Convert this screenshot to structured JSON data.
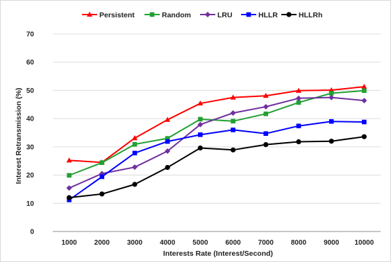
{
  "chart_data": {
    "type": "line",
    "title": "",
    "xlabel": "Interests Rate (Interest/Second)",
    "ylabel": "Interest Retransmission (%)",
    "categories": [
      "1000",
      "2000",
      "3000",
      "4000",
      "5000",
      "6000",
      "7000",
      "8000",
      "9000",
      "10000"
    ],
    "yticks": [
      "0",
      "10",
      "20",
      "30",
      "40",
      "50",
      "60",
      "70"
    ],
    "ylim": [
      0,
      70
    ],
    "grid": "horizontal",
    "legend_position": "top",
    "series": [
      {
        "name": "Persistent",
        "color": "#ff0000",
        "marker": "triangle",
        "values": [
          25.2,
          24.5,
          33.1,
          39.6,
          45.4,
          47.5,
          48.1,
          49.9,
          50.1,
          51.3
        ]
      },
      {
        "name": "Random",
        "color": "#22a033",
        "marker": "square",
        "values": [
          19.9,
          24.4,
          30.9,
          33.0,
          39.8,
          39.1,
          41.7,
          45.7,
          49.0,
          49.9
        ]
      },
      {
        "name": "LRU",
        "color": "#7030a0",
        "marker": "diamond",
        "values": [
          15.4,
          20.5,
          22.8,
          28.5,
          37.9,
          42.0,
          44.2,
          47.2,
          47.5,
          46.4
        ]
      },
      {
        "name": "HLLR",
        "color": "#0000ff",
        "marker": "square",
        "values": [
          11.2,
          19.4,
          27.8,
          31.9,
          34.3,
          36.0,
          34.7,
          37.4,
          39.0,
          38.8
        ]
      },
      {
        "name": "HLLRh",
        "color": "#000000",
        "marker": "circle",
        "values": [
          12.0,
          13.3,
          16.7,
          22.7,
          29.6,
          28.9,
          30.8,
          31.8,
          32.0,
          33.6
        ]
      }
    ]
  }
}
